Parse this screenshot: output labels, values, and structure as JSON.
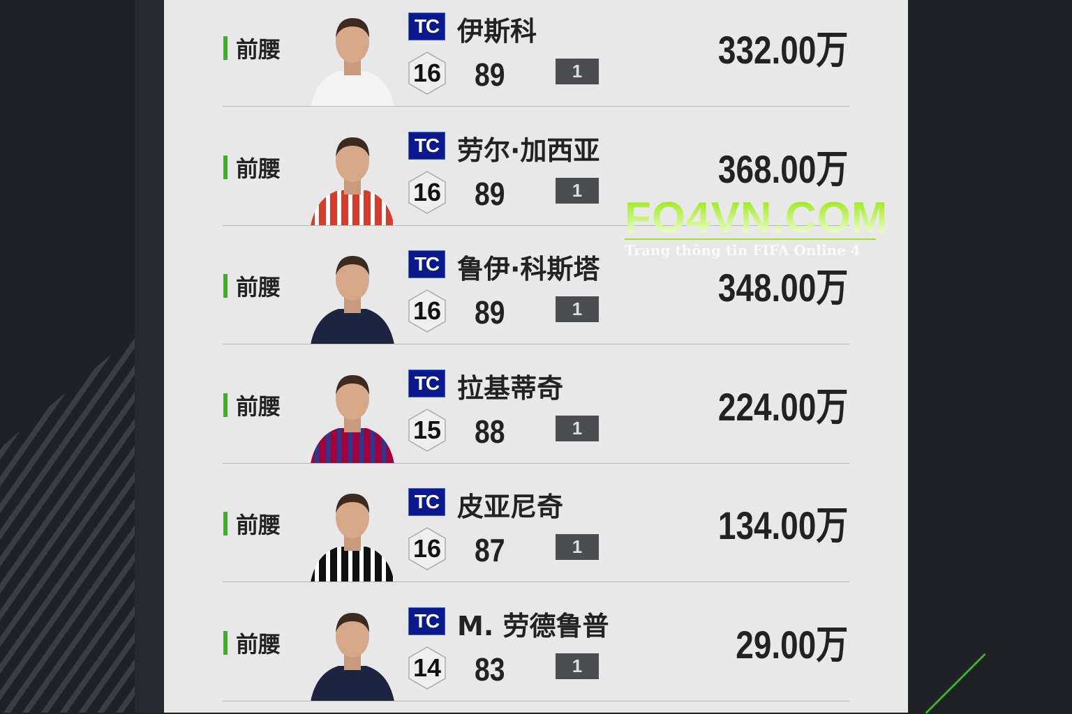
{
  "watermark": {
    "title": "FO4VN.COM",
    "subtitle": "Trang thông tin FIFA Online 4"
  },
  "colors": {
    "accent": "#3fae2a",
    "season_badge": "#0a1a8c",
    "panel": "#e8e8e8"
  },
  "players": [
    {
      "position": "前腰",
      "season": "TC",
      "name": "伊斯科",
      "level": "16",
      "ovr": "89",
      "grade": "1",
      "price": "332.00万",
      "photo": "white-kit"
    },
    {
      "position": "前腰",
      "season": "TC",
      "name": "劳尔·加西亚",
      "level": "16",
      "ovr": "89",
      "grade": "1",
      "price": "368.00万",
      "photo": "red-white-stripe-kit"
    },
    {
      "position": "前腰",
      "season": "TC",
      "name": "鲁伊·科斯塔",
      "level": "16",
      "ovr": "89",
      "grade": "1",
      "price": "348.00万",
      "photo": "dark-kit"
    },
    {
      "position": "前腰",
      "season": "TC",
      "name": "拉基蒂奇",
      "level": "15",
      "ovr": "88",
      "grade": "1",
      "price": "224.00万",
      "photo": "blaugrana-kit"
    },
    {
      "position": "前腰",
      "season": "TC",
      "name": "皮亚尼奇",
      "level": "16",
      "ovr": "87",
      "grade": "1",
      "price": "134.00万",
      "photo": "black-white-stripe-kit"
    },
    {
      "position": "前腰",
      "season": "TC",
      "name": "M. 劳德鲁普",
      "level": "14",
      "ovr": "83",
      "grade": "1",
      "price": "29.00万",
      "photo": "dark-kit"
    }
  ]
}
